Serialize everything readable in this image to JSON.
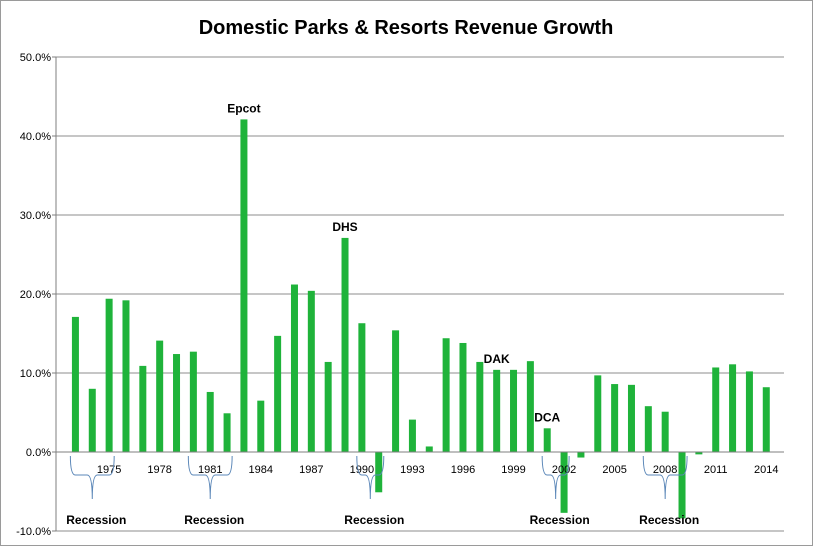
{
  "chart_data": {
    "type": "bar",
    "title": "Domestic Parks & Resorts Revenue Growth",
    "xlabel": "",
    "ylabel": "",
    "ylim": [
      -0.1,
      0.5
    ],
    "ytick_values": [
      -0.1,
      0.0,
      0.1,
      0.2,
      0.3,
      0.4,
      0.5
    ],
    "ytick_labels": [
      "-10.0%",
      "0.0%",
      "10.0%",
      "20.0%",
      "30.0%",
      "40.0%",
      "50.0%"
    ],
    "grid": true,
    "legend": "none",
    "bar_color": "#1fb33a",
    "brace_color": "#5b87b8",
    "categories": [
      1973,
      1974,
      1975,
      1976,
      1977,
      1978,
      1979,
      1980,
      1981,
      1982,
      1983,
      1984,
      1985,
      1986,
      1987,
      1988,
      1989,
      1990,
      1991,
      1992,
      1993,
      1994,
      1995,
      1996,
      1997,
      1998,
      1999,
      2000,
      2001,
      2002,
      2003,
      2004,
      2005,
      2006,
      2007,
      2008,
      2009,
      2010,
      2011,
      2012,
      2013,
      2014
    ],
    "values": [
      0.171,
      0.08,
      0.194,
      0.192,
      0.109,
      0.141,
      0.124,
      0.127,
      0.076,
      0.049,
      0.421,
      0.065,
      0.147,
      0.212,
      0.204,
      0.114,
      0.271,
      0.163,
      -0.051,
      0.154,
      0.041,
      0.007,
      0.144,
      0.138,
      0.114,
      0.104,
      0.104,
      0.115,
      0.03,
      -0.077,
      -0.007,
      0.097,
      0.086,
      0.085,
      0.058,
      0.051,
      -0.084,
      -0.003,
      0.107,
      0.111,
      0.102,
      0.082
    ],
    "xtick_years": [
      1975,
      1978,
      1981,
      1984,
      1987,
      1990,
      1993,
      1996,
      1999,
      2002,
      2005,
      2008,
      2011,
      2014
    ],
    "xtick_labels": [
      "1975",
      "1978",
      "1981",
      "1984",
      "1987",
      "1990",
      "1993",
      "1996",
      "1999",
      "2002",
      "2005",
      "2008",
      "2011",
      "2014"
    ],
    "annotations": [
      {
        "label": "Epcot",
        "year": 1983
      },
      {
        "label": "DHS",
        "year": 1989
      },
      {
        "label": "DAK",
        "year": 1998
      },
      {
        "label": "DCA",
        "year": 2001
      }
    ],
    "recessions": [
      {
        "label": "Recession",
        "start": 1973,
        "end": 1975
      },
      {
        "label": "Recession",
        "start": 1980,
        "end": 1982
      },
      {
        "label": "Recession",
        "start": 1990,
        "end": 1991
      },
      {
        "label": "Recession",
        "start": 2001,
        "end": 2002
      },
      {
        "label": "Recession",
        "start": 2007,
        "end": 2009
      }
    ]
  }
}
